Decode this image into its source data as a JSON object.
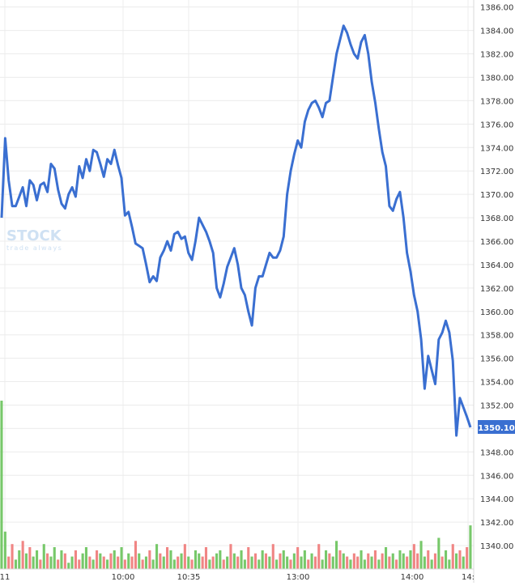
{
  "watermark": {
    "brand": "STOCK",
    "tagline": "trade always"
  },
  "colors": {
    "price_line": "#3a6fd1",
    "price_badge": "#3a6fd1",
    "volume_up": "#77c86a",
    "volume_down": "#f08584",
    "grid": "#ececec",
    "axis_text": "#333333"
  },
  "chart_data": {
    "type": "line",
    "y_axis": {
      "position": "right",
      "ylim": [
        1338,
        1386.6
      ],
      "tick_labels": [
        "1386.00",
        "1384.00",
        "1382.00",
        "1380.00",
        "1378.00",
        "1376.00",
        "1374.00",
        "1372.00",
        "1370.00",
        "1368.00",
        "1366.00",
        "1364.00",
        "1362.00",
        "1360.00",
        "1358.00",
        "1356.00",
        "1354.00",
        "1352.00",
        "1350.00",
        "1348.00",
        "1346.00",
        "1344.00",
        "1342.00",
        "1340.00"
      ],
      "tick_values": [
        1386,
        1384,
        1382,
        1380,
        1378,
        1376,
        1374,
        1372,
        1370,
        1368,
        1366,
        1364,
        1362,
        1360,
        1358,
        1356,
        1354,
        1352,
        1350,
        1348,
        1346,
        1344,
        1342,
        1340
      ]
    },
    "x_axis": {
      "ticks": [
        "11",
        "10:00",
        "10:35",
        "13:00",
        "14:00",
        "14:"
      ]
    },
    "last_price": "1350.10",
    "grid": true,
    "series": [
      {
        "values": [
          1368,
          1374.8,
          1371.2,
          1369,
          1369,
          1369.8,
          1370.6,
          1369,
          1371.2,
          1370.8,
          1369.5,
          1370.8,
          1371,
          1370.2,
          1372.6,
          1372.2,
          1370.4,
          1369.2,
          1368.8,
          1370,
          1370.6,
          1369.8,
          1372.4,
          1371.4,
          1373,
          1372,
          1373.8,
          1373.6,
          1372.6,
          1371.5,
          1373,
          1372.6,
          1373.8,
          1372.5,
          1371.4,
          1368.2,
          1368.5,
          1367.2,
          1365.8,
          1365.6,
          1365.4,
          1364,
          1362.5,
          1363,
          1362.6,
          1364.6,
          1365.2,
          1366,
          1365.2,
          1366.6,
          1366.8,
          1366.2,
          1366.4,
          1365,
          1364.4,
          1366,
          1368,
          1367.4,
          1366.8,
          1366,
          1365,
          1362,
          1361.2,
          1362.4,
          1363.8,
          1364.6,
          1365.4,
          1364,
          1362,
          1361.4,
          1360,
          1358.8,
          1362,
          1363,
          1363,
          1364,
          1365,
          1364.6,
          1364.6,
          1365.2,
          1366.4,
          1370,
          1372,
          1373.4,
          1374.6,
          1374,
          1376.2,
          1377.2,
          1377.8,
          1378,
          1377.4,
          1376.6,
          1377.8,
          1378,
          1380,
          1382,
          1383.2,
          1384.4,
          1383.8,
          1382.8,
          1382,
          1381.6,
          1383,
          1383.6,
          1382,
          1379.6,
          1377.8,
          1375.6,
          1373.6,
          1372.4,
          1369,
          1368.6,
          1369.6,
          1370.2,
          1368,
          1365,
          1363.4,
          1361.4,
          1360,
          1357.6,
          1353.4,
          1356.2,
          1355,
          1353.8,
          1357.6,
          1358.2,
          1359.2,
          1358.2,
          1355.8,
          1349.4,
          1352.6,
          1351.8,
          1351,
          1350.1
        ],
        "volume_up": [
          true,
          true,
          false,
          false,
          true,
          true,
          false,
          true,
          false,
          true,
          true,
          false,
          true,
          false,
          true,
          true,
          false,
          true,
          false,
          true,
          true,
          false,
          false,
          true,
          true,
          false,
          true,
          false,
          true,
          false,
          true,
          false,
          true,
          false,
          true,
          false,
          true,
          false,
          false,
          true,
          false,
          true,
          false,
          true,
          true,
          false,
          true,
          false,
          true,
          true,
          false,
          true,
          false,
          true,
          false,
          true,
          true,
          false,
          false,
          true,
          false,
          true,
          true,
          false,
          true,
          false,
          true,
          false,
          true,
          true,
          false,
          true,
          false,
          true,
          true,
          false,
          true,
          false,
          true,
          false,
          true,
          true,
          false,
          true,
          false,
          true,
          true,
          false,
          true,
          false,
          false,
          true,
          true,
          false,
          true,
          true,
          false,
          true,
          false,
          true,
          false,
          false,
          true,
          true,
          false,
          true,
          false,
          true,
          false,
          true,
          false,
          true,
          false,
          true,
          true,
          false,
          true,
          false,
          false,
          true,
          true,
          false,
          true,
          false,
          true,
          false,
          true,
          true,
          false,
          true,
          false,
          true,
          false,
          true
        ],
        "volume": [
          54,
          12,
          4,
          8,
          3,
          6,
          9,
          5,
          7,
          4,
          6,
          3,
          8,
          5,
          4,
          7,
          3,
          6,
          5,
          2,
          4,
          6,
          3,
          5,
          7,
          4,
          3,
          6,
          5,
          4,
          3,
          5,
          6,
          4,
          7,
          3,
          5,
          4,
          9,
          5,
          3,
          4,
          6,
          3,
          8,
          5,
          4,
          7,
          6,
          3,
          4,
          5,
          8,
          4,
          3,
          6,
          5,
          4,
          7,
          3,
          4,
          5,
          6,
          3,
          4,
          8,
          5,
          4,
          6,
          3,
          7,
          4,
          5,
          3,
          6,
          5,
          4,
          8,
          3,
          5,
          6,
          4,
          3,
          5,
          7,
          4,
          6,
          3,
          5,
          4,
          8,
          3,
          6,
          5,
          4,
          9,
          6,
          5,
          4,
          3,
          5,
          4,
          6,
          3,
          5,
          4,
          6,
          3,
          5,
          7,
          4,
          5,
          3,
          6,
          5,
          4,
          6,
          8,
          5,
          9,
          4,
          6,
          3,
          5,
          10,
          4,
          6,
          3,
          8,
          5,
          6,
          4,
          7,
          14
        ]
      }
    ]
  }
}
